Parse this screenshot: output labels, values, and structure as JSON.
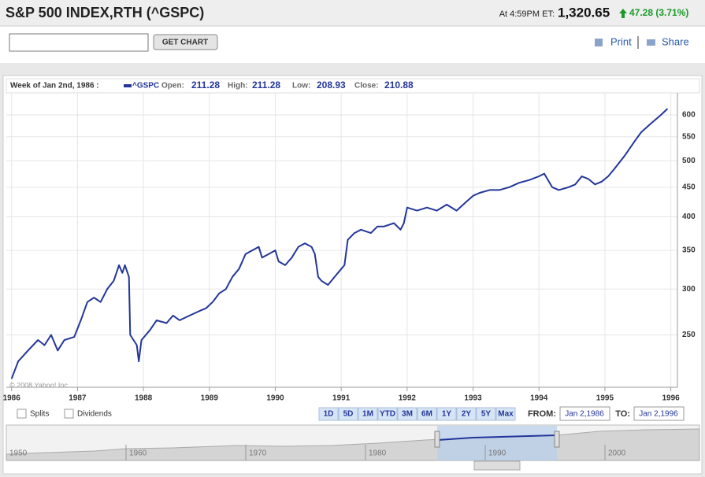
{
  "header": {
    "title": "S&P 500 INDEX,RTH (^GSPC)",
    "time": "At 4:59PM ET:",
    "price": "1,320.65",
    "change": "47.28 (3.71%)"
  },
  "toolbar": {
    "button": "GET CHART",
    "print": "Print",
    "share": "Share"
  },
  "info": {
    "week": "Week of Jan 2nd, 1986 :",
    "open_label": "Open:",
    "open": 211.28,
    "high_label": "High:",
    "high": 211.28,
    "low_label": "Low:",
    "low": 208.93,
    "close_label": "Close:",
    "close": 210.88
  },
  "chart_data": {
    "type": "line",
    "log_scale": true,
    "grid": true,
    "copyright": "© 2008 Yahoo! Inc.",
    "x": [
      1986.0,
      1986.1,
      1986.25,
      1986.4,
      1986.5,
      1986.6,
      1986.7,
      1986.8,
      1986.95,
      1987.05,
      1987.15,
      1987.25,
      1987.35,
      1987.45,
      1987.55,
      1987.63,
      1987.68,
      1987.72,
      1987.78,
      1987.8,
      1987.85,
      1987.9,
      1987.93,
      1987.97,
      1988.1,
      1988.2,
      1988.35,
      1988.45,
      1988.55,
      1988.7,
      1988.85,
      1988.95,
      1989.05,
      1989.15,
      1989.25,
      1989.35,
      1989.45,
      1989.55,
      1989.65,
      1989.75,
      1989.8,
      1989.9,
      1990.0,
      1990.05,
      1990.15,
      1990.25,
      1990.35,
      1990.45,
      1990.55,
      1990.6,
      1990.65,
      1990.7,
      1990.8,
      1990.9,
      1991.0,
      1991.05,
      1991.1,
      1991.2,
      1991.3,
      1991.45,
      1991.55,
      1991.65,
      1991.8,
      1991.9,
      1991.95,
      1992.0,
      1992.15,
      1992.3,
      1992.45,
      1992.6,
      1992.75,
      1992.9,
      1993.0,
      1993.1,
      1993.25,
      1993.4,
      1993.55,
      1993.7,
      1993.85,
      1994.0,
      1994.08,
      1994.2,
      1994.3,
      1994.45,
      1994.55,
      1994.65,
      1994.75,
      1994.85,
      1994.95,
      1995.05,
      1995.15,
      1995.3,
      1995.45,
      1995.55,
      1995.7,
      1995.85,
      1995.95
    ],
    "series": [
      {
        "name": "^GSPC",
        "color": "#23369a",
        "values": [
          210,
          225,
          235,
          245,
          240,
          250,
          235,
          245,
          248,
          265,
          285,
          290,
          285,
          300,
          310,
          330,
          320,
          330,
          315,
          250,
          245,
          240,
          225,
          245,
          255,
          265,
          262,
          270,
          265,
          270,
          275,
          278,
          285,
          295,
          300,
          315,
          325,
          345,
          350,
          355,
          340,
          345,
          350,
          335,
          330,
          340,
          355,
          360,
          355,
          345,
          315,
          310,
          305,
          315,
          325,
          330,
          365,
          375,
          380,
          375,
          385,
          385,
          390,
          380,
          390,
          415,
          410,
          415,
          410,
          420,
          410,
          425,
          435,
          440,
          445,
          445,
          450,
          458,
          463,
          470,
          475,
          450,
          445,
          450,
          455,
          470,
          465,
          455,
          460,
          470,
          485,
          510,
          540,
          560,
          580,
          600,
          615
        ]
      }
    ],
    "xlim": [
      1985.92,
      1996.1
    ],
    "xticks": [
      1986,
      1987,
      1988,
      1989,
      1990,
      1991,
      1992,
      1993,
      1994,
      1995,
      1996
    ],
    "ylim": [
      203,
      655
    ],
    "yticks": [
      250,
      300,
      350,
      400,
      450,
      500,
      550,
      600
    ]
  },
  "controls": {
    "splits": "Splits",
    "dividends": "Dividends",
    "ranges": [
      "1D",
      "5D",
      "1M",
      "YTD",
      "3M",
      "6M",
      "1Y",
      "2Y",
      "5Y",
      "Max"
    ],
    "from_label": "FROM:",
    "from": "Jan 2,1986",
    "to_label": "TO:",
    "to": "Jan 2,1996"
  },
  "navigator": {
    "years": [
      "1950",
      "1960",
      "1970",
      "1980",
      "1990",
      "2000"
    ]
  }
}
